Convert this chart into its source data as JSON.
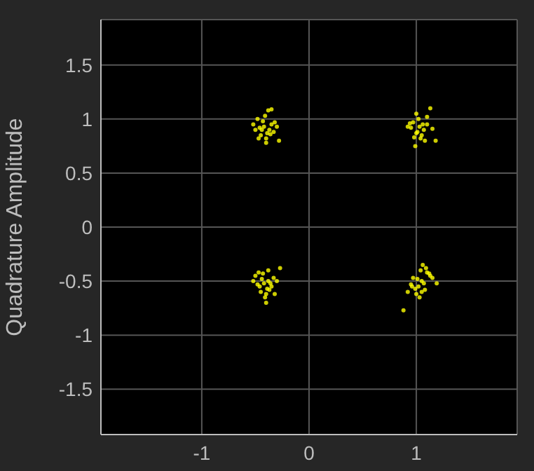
{
  "chart_data": {
    "type": "scatter",
    "ylabel": "Quadrature Amplitude",
    "xlim": [
      -1.94,
      1.94
    ],
    "ylim": [
      -1.92,
      1.92
    ],
    "xticks": [
      -1,
      0,
      1
    ],
    "yticks": [
      -1.5,
      -1,
      -0.5,
      0,
      0.5,
      1,
      1.5
    ],
    "grid": true,
    "marker": "circle",
    "series": [
      {
        "color": "#ffff00",
        "x": [
          -0.42,
          -0.5,
          -0.35,
          -0.38,
          -0.45,
          -0.3,
          -0.48,
          -0.4,
          -0.33,
          -0.52,
          -0.43,
          -0.37,
          -0.28,
          -0.46,
          -0.41,
          -0.35,
          -0.39,
          -0.47,
          -0.32,
          -0.44,
          -0.36,
          -0.4,
          1.03,
          0.95,
          1.1,
          1.0,
          1.07,
          0.98,
          1.13,
          1.05,
          0.92,
          1.02,
          1.08,
          0.97,
          1.15,
          1.01,
          0.99,
          1.06,
          1.04,
          0.94,
          1.1,
          1.0,
          1.18,
          -0.42,
          -0.5,
          -0.35,
          -0.45,
          -0.38,
          -0.3,
          -0.48,
          -0.4,
          -0.33,
          -0.52,
          -0.43,
          -0.37,
          -0.27,
          -0.46,
          -0.41,
          -0.36,
          -0.39,
          -0.47,
          -0.32,
          -0.44,
          -0.4,
          -0.38,
          1.05,
          0.97,
          1.1,
          1.02,
          1.08,
          0.95,
          1.13,
          1.04,
          0.92,
          1.06,
          1.0,
          1.15,
          1.07,
          0.99,
          1.12,
          1.03,
          1.01,
          1.09,
          0.96,
          1.05,
          1.19,
          0.88
        ],
        "values": [
          0.93,
          0.9,
          0.95,
          1.08,
          0.85,
          0.93,
          1.0,
          0.82,
          0.88,
          0.95,
          0.98,
          0.9,
          0.8,
          0.92,
          1.03,
          1.09,
          0.87,
          0.82,
          0.97,
          0.9,
          0.86,
          0.78,
          0.93,
          0.92,
          0.95,
          1.05,
          0.9,
          0.83,
          1.1,
          0.85,
          0.93,
          1.0,
          0.8,
          0.97,
          0.91,
          0.88,
          0.75,
          0.95,
          0.82,
          0.96,
          1.02,
          0.87,
          0.8,
          -0.52,
          -0.45,
          -0.55,
          -0.6,
          -0.4,
          -0.5,
          -0.53,
          -0.62,
          -0.47,
          -0.5,
          -0.43,
          -0.58,
          -0.38,
          -0.55,
          -0.65,
          -0.52,
          -0.57,
          -0.42,
          -0.62,
          -0.48,
          -0.7,
          -0.5,
          -0.5,
          -0.47,
          -0.42,
          -0.55,
          -0.58,
          -0.53,
          -0.45,
          -0.4,
          -0.6,
          -0.35,
          -0.62,
          -0.47,
          -0.52,
          -0.57,
          -0.43,
          -0.65,
          -0.48,
          -0.38,
          -0.55,
          -0.6,
          -0.52,
          -0.77
        ]
      }
    ]
  }
}
